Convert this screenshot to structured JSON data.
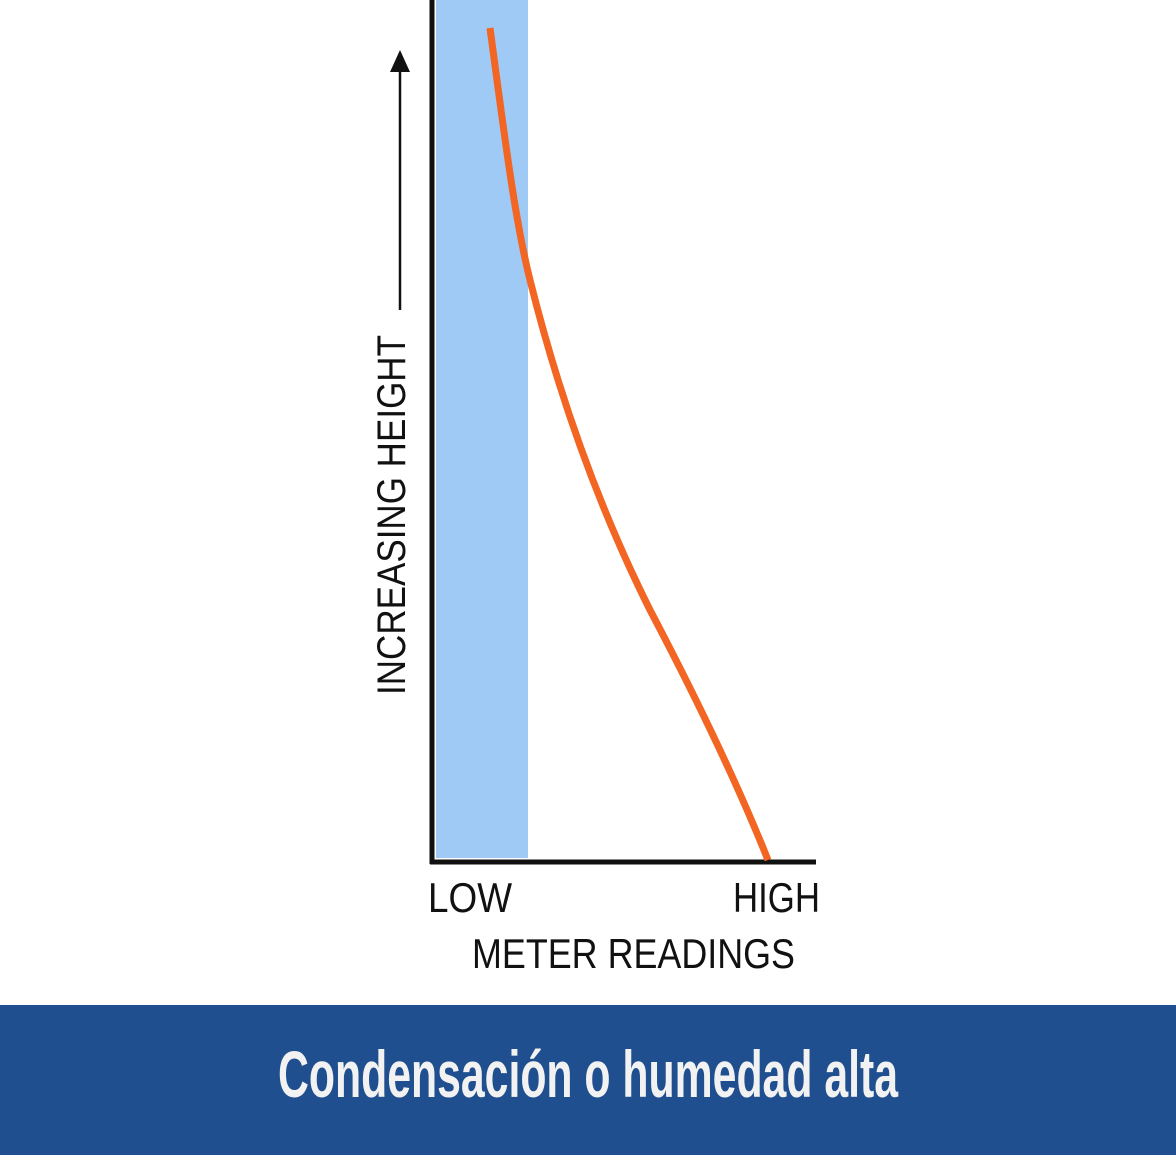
{
  "diagram": {
    "y_axis_label": "INCREASING HEIGHT",
    "x_low_label": "LOW",
    "x_high_label": "HIGH",
    "x_axis_label": "METER READINGS"
  },
  "banner": {
    "title": "Condensación o humedad alta"
  }
}
